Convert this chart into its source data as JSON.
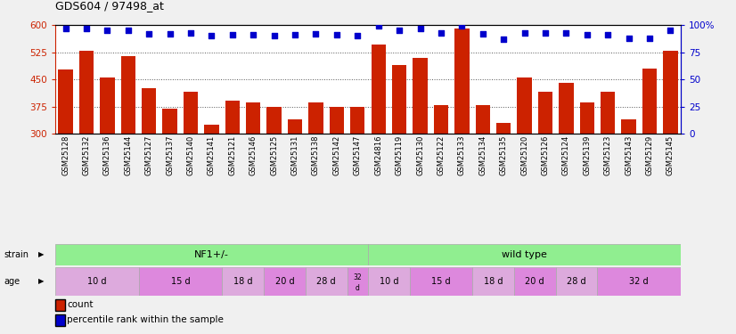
{
  "title": "GDS604 / 97498_at",
  "samples": [
    "GSM25128",
    "GSM25132",
    "GSM25136",
    "GSM25144",
    "GSM25127",
    "GSM25137",
    "GSM25140",
    "GSM25141",
    "GSM25121",
    "GSM25146",
    "GSM25125",
    "GSM25131",
    "GSM25138",
    "GSM25142",
    "GSM25147",
    "GSM24816",
    "GSM25119",
    "GSM25130",
    "GSM25122",
    "GSM25133",
    "GSM25134",
    "GSM25135",
    "GSM25120",
    "GSM25126",
    "GSM25124",
    "GSM25139",
    "GSM25123",
    "GSM25143",
    "GSM25129",
    "GSM25145"
  ],
  "counts": [
    478,
    528,
    455,
    515,
    425,
    370,
    415,
    325,
    390,
    385,
    375,
    340,
    385,
    375,
    375,
    545,
    490,
    510,
    380,
    590,
    380,
    330,
    455,
    415,
    440,
    385,
    415,
    340,
    480,
    530
  ],
  "percentiles": [
    97,
    97,
    95,
    95,
    92,
    92,
    93,
    90,
    91,
    91,
    90,
    91,
    92,
    91,
    90,
    99,
    95,
    97,
    93,
    99,
    92,
    87,
    93,
    93,
    93,
    91,
    91,
    88,
    88,
    95
  ],
  "ylim_left": [
    300,
    600
  ],
  "ylim_right": [
    0,
    100
  ],
  "yticks_left": [
    300,
    375,
    450,
    525,
    600
  ],
  "yticks_right": [
    0,
    25,
    50,
    75,
    100
  ],
  "bar_color": "#cc2200",
  "dot_color": "#0000cc",
  "strain_nf1_color": "#90ee90",
  "strain_wt_color": "#66dd66",
  "age_color_light": "#ddaadd",
  "age_color_dark": "#dd88dd",
  "strain_groups": [
    {
      "label": "NF1+/-",
      "start": 0,
      "end": 15
    },
    {
      "label": "wild type",
      "start": 15,
      "end": 30
    }
  ],
  "age_groups": [
    {
      "label": "10 d",
      "start": 0,
      "end": 4,
      "dark": false
    },
    {
      "label": "15 d",
      "start": 4,
      "end": 8,
      "dark": true
    },
    {
      "label": "18 d",
      "start": 8,
      "end": 10,
      "dark": false
    },
    {
      "label": "20 d",
      "start": 10,
      "end": 12,
      "dark": true
    },
    {
      "label": "28 d",
      "start": 12,
      "end": 14,
      "dark": false
    },
    {
      "label": "32 d",
      "start": 14,
      "end": 15,
      "dark": true
    },
    {
      "label": "10 d",
      "start": 15,
      "end": 17,
      "dark": false
    },
    {
      "label": "15 d",
      "start": 17,
      "end": 20,
      "dark": true
    },
    {
      "label": "18 d",
      "start": 20,
      "end": 22,
      "dark": false
    },
    {
      "label": "20 d",
      "start": 22,
      "end": 24,
      "dark": true
    },
    {
      "label": "28 d",
      "start": 24,
      "end": 26,
      "dark": false
    },
    {
      "label": "32 d",
      "start": 26,
      "end": 30,
      "dark": true
    }
  ]
}
